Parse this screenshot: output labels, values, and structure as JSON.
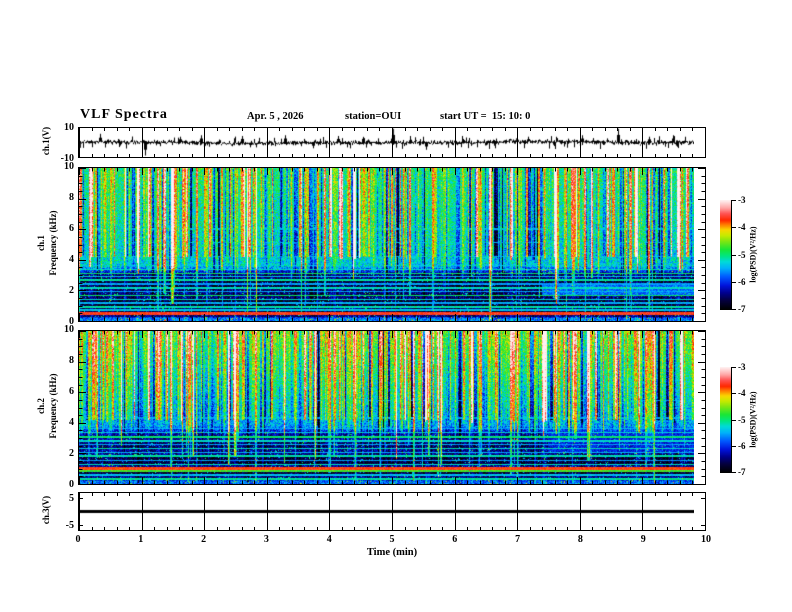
{
  "header": {
    "title": "VLF Spectra",
    "date": "Apr. 5 , 2026",
    "station": "station=OUI",
    "start_ut": "start UT =  15: 10: 0"
  },
  "axes": {
    "x": {
      "label": "Time (min)",
      "ticks": [
        0,
        1,
        2,
        3,
        4,
        5,
        6,
        7,
        8,
        9,
        10
      ],
      "minor_step": 0.2,
      "range": [
        0,
        10
      ]
    },
    "freq": {
      "ticks": [
        0,
        2,
        4,
        6,
        8,
        10
      ],
      "minor_step": 0.5,
      "range": [
        0,
        10
      ]
    }
  },
  "panels": {
    "ch1_wave": {
      "ylabel": "ch.1(V)",
      "yticks": [
        {
          "v": 10,
          "label": "10"
        },
        {
          "v": -10,
          "label": "-10"
        }
      ],
      "y_range": [
        -10,
        10
      ]
    },
    "ch1_spec": {
      "ylabel_channel": "ch.1",
      "ylabel_axis": "Frequency (kHz)"
    },
    "ch2_spec": {
      "ylabel_channel": "ch.2",
      "ylabel_axis": "Frequency (kHz)"
    },
    "ch3_wave": {
      "ylabel": "ch.3(V)",
      "yticks": [
        {
          "v": 5,
          "label": "5"
        },
        {
          "v": -5,
          "label": "-5"
        }
      ],
      "y_range": [
        -7,
        7
      ]
    }
  },
  "colorbar": {
    "label": "log(PSD)(V²/Hz)",
    "ticks": [
      -3,
      -4,
      -5,
      -6,
      -7
    ],
    "range": [
      -7,
      -3
    ],
    "stops": [
      [
        0,
        [
          0,
          0,
          0
        ]
      ],
      [
        0.08,
        [
          5,
          0,
          60
        ]
      ],
      [
        0.15,
        [
          0,
          0,
          140
        ]
      ],
      [
        0.22,
        [
          0,
          20,
          220
        ]
      ],
      [
        0.3,
        [
          0,
          90,
          255
        ]
      ],
      [
        0.38,
        [
          0,
          180,
          250
        ]
      ],
      [
        0.44,
        [
          0,
          220,
          215
        ]
      ],
      [
        0.49,
        [
          0,
          230,
          130
        ]
      ],
      [
        0.55,
        [
          25,
          230,
          55
        ]
      ],
      [
        0.62,
        [
          120,
          230,
          20
        ]
      ],
      [
        0.68,
        [
          200,
          235,
          0
        ]
      ],
      [
        0.73,
        [
          250,
          215,
          0
        ]
      ],
      [
        0.77,
        [
          255,
          140,
          0
        ]
      ],
      [
        0.82,
        [
          255,
          40,
          0
        ]
      ],
      [
        0.88,
        [
          255,
          85,
          85
        ]
      ],
      [
        0.93,
        [
          255,
          165,
          165
        ]
      ],
      [
        1,
        [
          255,
          240,
          240
        ]
      ]
    ]
  },
  "chart_data": [
    {
      "id": "ch1_waveform",
      "type": "line",
      "panel": "wave",
      "x_range_min": [
        0,
        9.84
      ],
      "y_range_V": [
        -10,
        10
      ],
      "baseline_V": 0,
      "noise_amp_V": 2,
      "seed": 7771,
      "micro_spikes": {
        "count": 90,
        "amp_min": 2,
        "amp_max": 4.5
      },
      "spikes": [
        {
          "t": 0.33,
          "a": 6
        },
        {
          "t": 1.05,
          "a": -9
        },
        {
          "t": 1.62,
          "a": 4
        },
        {
          "t": 1.95,
          "a": 5
        },
        {
          "t": 2.6,
          "a": 4.5
        },
        {
          "t": 3.3,
          "a": 5
        },
        {
          "t": 3.75,
          "a": -4
        },
        {
          "t": 4.15,
          "a": 4.5
        },
        {
          "t": 5.02,
          "a": 9.5
        },
        {
          "t": 5.55,
          "a": -5
        },
        {
          "t": 6.12,
          "a": 4.5
        },
        {
          "t": 6.65,
          "a": -4
        },
        {
          "t": 7.18,
          "a": 4
        },
        {
          "t": 7.62,
          "a": -4.5
        },
        {
          "t": 8.05,
          "a": 5
        },
        {
          "t": 8.62,
          "a": 9.5
        },
        {
          "t": 9.12,
          "a": 4
        },
        {
          "t": 9.5,
          "a": 5
        }
      ]
    },
    {
      "id": "ch1_spectrogram",
      "type": "heatmap",
      "panel": "spec1",
      "x_range_min": [
        0,
        9.84
      ],
      "y_range_kHz": [
        0,
        10
      ],
      "z_range_logpsd": [
        -7,
        -3
      ],
      "seed": 12347,
      "noise": 0.9,
      "bg_profile": [
        [
          0,
          -5.7
        ],
        [
          0.21,
          -5.72
        ],
        [
          0.26,
          -6.5
        ],
        [
          0.5,
          -6.55
        ],
        [
          3.0,
          -6.5
        ],
        [
          3.6,
          -5.35
        ],
        [
          10,
          -4.95
        ]
      ],
      "dark_bands": [
        [
          0.45,
          0.75,
          -0.15
        ],
        [
          0.9,
          1.45,
          -0.25
        ],
        [
          2.25,
          2.7,
          -0.2
        ]
      ],
      "h_lines": [
        [
          0.5,
          -3.65,
          2
        ],
        [
          0.75,
          -5.4,
          1
        ],
        [
          0.95,
          -5.15,
          1
        ],
        [
          1.2,
          -5.5,
          1
        ],
        [
          1.45,
          -5.25,
          1
        ],
        [
          1.7,
          -4.95,
          1
        ],
        [
          1.95,
          -5.5,
          1
        ],
        [
          2.2,
          -5.2,
          1
        ],
        [
          2.45,
          -5.55,
          1
        ],
        [
          2.7,
          -5.1,
          1
        ],
        [
          2.95,
          -5.35,
          1
        ],
        [
          3.15,
          -4.95,
          1
        ],
        [
          3.4,
          -5.2,
          1
        ],
        [
          3.65,
          -5.45,
          1
        ],
        [
          4.25,
          -5.5,
          1
        ],
        [
          5.15,
          -5.6,
          1
        ],
        [
          6.05,
          -5.55,
          1
        ]
      ],
      "streaks": {
        "count": 540,
        "hot_prob": 0.09,
        "deep_prob": 0.3
      },
      "late_feature": {
        "t_start": 7.4,
        "f_low": 1.7,
        "f_high": 2.45,
        "level": -5.75
      }
    },
    {
      "id": "ch2_spectrogram",
      "type": "heatmap",
      "panel": "spec2",
      "x_range_min": [
        0,
        9.84
      ],
      "y_range_kHz": [
        0,
        10
      ],
      "z_range_logpsd": [
        -7,
        -3
      ],
      "seed": 54323,
      "noise": 0.9,
      "bg_profile": [
        [
          0,
          -5.8
        ],
        [
          0.21,
          -5.8
        ],
        [
          0.26,
          -6.45
        ],
        [
          3.2,
          -6.4
        ],
        [
          3.8,
          -5.55
        ],
        [
          10,
          -4.6
        ]
      ],
      "dark_bands": [
        [
          0.5,
          0.85,
          -0.3
        ],
        [
          1.3,
          1.75,
          -0.3
        ],
        [
          2.3,
          2.8,
          -0.15
        ]
      ],
      "h_lines": [
        [
          0.35,
          -5.1,
          1
        ],
        [
          0.62,
          -5.4,
          1
        ],
        [
          0.88,
          -4.7,
          1
        ],
        [
          1.05,
          -3.7,
          2
        ],
        [
          1.3,
          -5.2,
          1
        ],
        [
          1.58,
          -5.55,
          1
        ],
        [
          1.85,
          -5.15,
          1
        ],
        [
          2.1,
          -5.45,
          1
        ],
        [
          2.35,
          -5.2,
          1
        ],
        [
          2.6,
          -5.5,
          1
        ],
        [
          2.85,
          -5.25,
          1
        ],
        [
          3.1,
          -5.0,
          1
        ],
        [
          3.4,
          -5.3,
          1
        ],
        [
          3.65,
          -5.5,
          1
        ],
        [
          4.35,
          -5.55,
          1
        ],
        [
          5.5,
          -5.65,
          1
        ]
      ],
      "streaks": {
        "count": 560,
        "hot_prob": 0.1,
        "deep_prob": 0.28
      },
      "late_feature": {
        "t_start": 7.5,
        "f_low": 2.0,
        "f_high": 4.0,
        "level": -6.1
      }
    },
    {
      "id": "ch3_waveform",
      "type": "line",
      "panel": "ch3",
      "x_range_min": [
        0,
        9.84
      ],
      "y_range_V": [
        -7,
        7
      ],
      "value_V": 0,
      "line_thickness_px": 3
    }
  ]
}
